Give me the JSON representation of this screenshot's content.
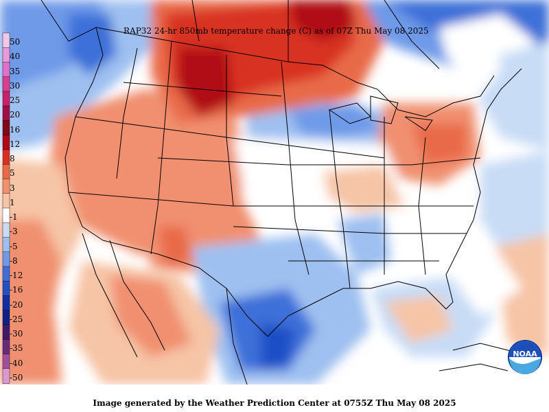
{
  "title": "RAP32 24-hr 850mb temperature change (C) as of 07Z Thu May 08 2025",
  "footer": "Image generated by the Weather Prediction Center at 0755Z Thu May 08 2025",
  "logo_text": "NOAA",
  "legend": {
    "labels": [
      "50",
      "40",
      "35",
      "30",
      "25",
      "20",
      "16",
      "12",
      "8",
      "5",
      "3",
      "1",
      "-1",
      "-3",
      "-5",
      "-8",
      "-12",
      "-16",
      "-20",
      "-25",
      "-30",
      "-35",
      "-40",
      "-50"
    ],
    "colors": [
      "#f2c6e6",
      "#e99ad8",
      "#e070c8",
      "#d8408c",
      "#c8206a",
      "#a01048",
      "#800818",
      "#b00818",
      "#d83020",
      "#e86a48",
      "#f09070",
      "#f6c4a6",
      "#ffffff",
      "#c8dcf6",
      "#9ec0f0",
      "#6e9ae8",
      "#3c70d8",
      "#1f50c6",
      "#1030a8",
      "#102088",
      "#401a6a",
      "#6a2a7a",
      "#a0509a",
      "#d89ad0"
    ]
  }
}
